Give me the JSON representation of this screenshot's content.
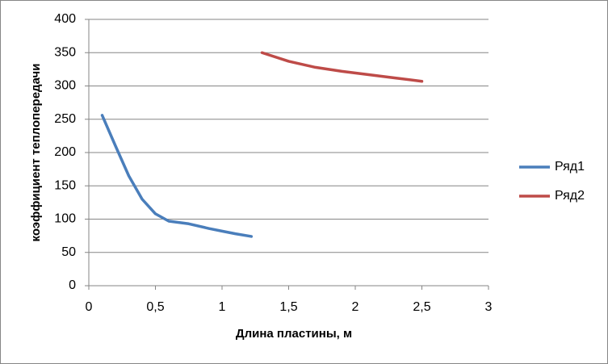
{
  "chart_data": {
    "type": "line",
    "x_label": "Длина пластины, м",
    "y_label": "коэффициент теплопередачи",
    "xlim": [
      0,
      3
    ],
    "xticks": [
      0,
      {
        "value": 0.5,
        "label": "0,5"
      },
      1,
      {
        "value": 1.5,
        "label": "1,5"
      },
      2,
      {
        "value": 2.5,
        "label": "2,5"
      },
      3
    ],
    "ylim": [
      0,
      400
    ],
    "yticks": [
      0,
      50,
      100,
      150,
      200,
      250,
      300,
      350,
      400
    ],
    "grid": true,
    "legend": "right",
    "series": [
      {
        "name": "Ряд1",
        "color": "#4a7ebb",
        "x": [
          0.1,
          0.2,
          0.3,
          0.4,
          0.5,
          0.6,
          0.75,
          0.9,
          1.0,
          1.1,
          1.22
        ],
        "values": [
          256,
          210,
          165,
          130,
          108,
          97,
          93,
          86,
          82,
          78,
          74
        ]
      },
      {
        "name": "Ряд2",
        "color": "#be4b48",
        "x": [
          1.3,
          1.5,
          1.7,
          1.9,
          2.1,
          2.3,
          2.5
        ],
        "values": [
          350,
          337,
          328,
          322,
          317,
          312,
          307
        ]
      }
    ]
  }
}
